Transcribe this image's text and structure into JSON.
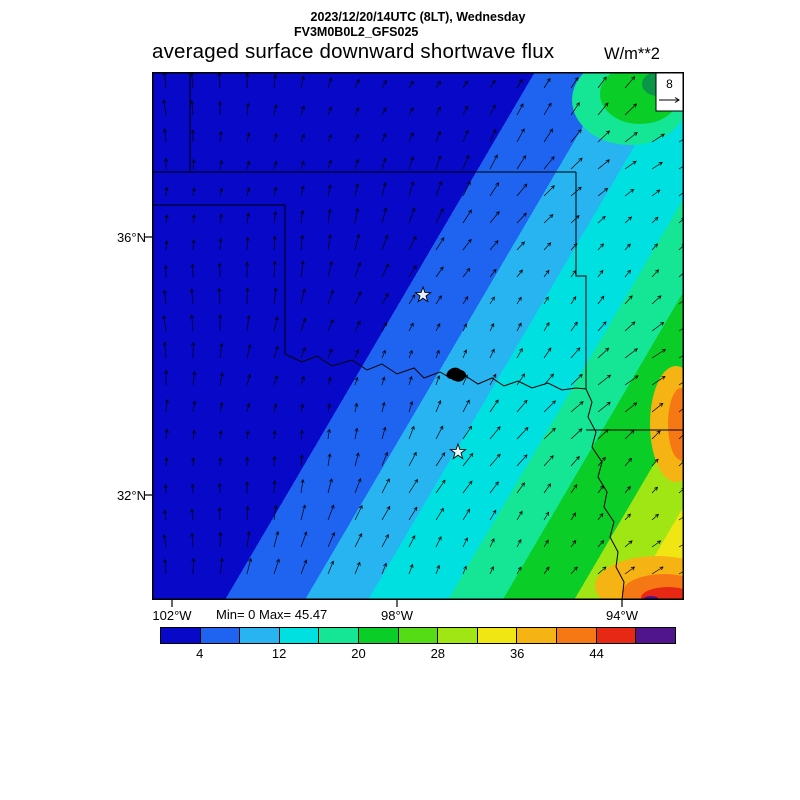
{
  "header": {
    "datetime": "2023/12/20/14UTC (8LT), Wednesday",
    "model": "FV3M0B0L2_GFS025",
    "title": "averaged surface downward shortwave flux",
    "units": "W/m**2"
  },
  "map": {
    "ref_vector_label": "8",
    "stats": "Min= 0 Max= 45.47",
    "lat_labels": [
      "36°N",
      "32°N"
    ],
    "lon_labels": [
      "102°W",
      "98°W",
      "94°W"
    ]
  },
  "colorbar": {
    "colors": [
      "#0808C8",
      "#1E64F0",
      "#28B4F0",
      "#00E0E0",
      "#14E696",
      "#0ACD28",
      "#55DC14",
      "#A0E614",
      "#F0E614",
      "#F5B414",
      "#F57814",
      "#E62814",
      "#50148C"
    ],
    "tick_labels": [
      "4",
      "12",
      "20",
      "28",
      "36",
      "44"
    ]
  },
  "chart_data": {
    "type": "heatmap",
    "title": "averaged surface downward shortwave flux",
    "units": "W/m**2",
    "valid_time": "2023/12/20/14UTC (8LT), Wednesday",
    "model_run": "FV3M0B0L2_GFS025",
    "stat_min": 0,
    "stat_max": 45.47,
    "colorbar_tick_labels": [
      4,
      12,
      20,
      28,
      36,
      44
    ],
    "colorbar_colors": [
      "#0808C8",
      "#1E64F0",
      "#28B4F0",
      "#00E0E0",
      "#14E696",
      "#0ACD28",
      "#55DC14",
      "#A0E614",
      "#F0E614",
      "#F5B414",
      "#F57814",
      "#E62814",
      "#50148C"
    ],
    "lat_ticks": [
      "36N",
      "32N"
    ],
    "lon_ticks": [
      "102W",
      "98W",
      "94W"
    ],
    "wind_reference": 8,
    "value_orientation": "flux increases from northwest (~0 W/m**2, dark blue) to southeast (~45 W/m**2, red), in diagonal SW-NE bands; maximum in far southeast corner",
    "field_gradient_bands": [
      {
        "to": 0.455,
        "color": "#0808C8"
      },
      {
        "to": 0.55,
        "color": "#1E64F0"
      },
      {
        "to": 0.625,
        "color": "#28B4F0"
      },
      {
        "to": 0.72,
        "color": "#00E0E0"
      },
      {
        "to": 0.785,
        "color": "#14E696"
      },
      {
        "to": 0.87,
        "color": "#0ACD28"
      },
      {
        "to": 0.935,
        "color": "#A0E614"
      },
      {
        "to": 1.0,
        "color": "#F0E614"
      }
    ],
    "star_markers_svg": [
      [
        271,
        223
      ],
      [
        306,
        380
      ]
    ],
    "overlays": "wind vector arrows, state borders (OK/TX/KS/AR/LA region), lake, two star markers"
  }
}
